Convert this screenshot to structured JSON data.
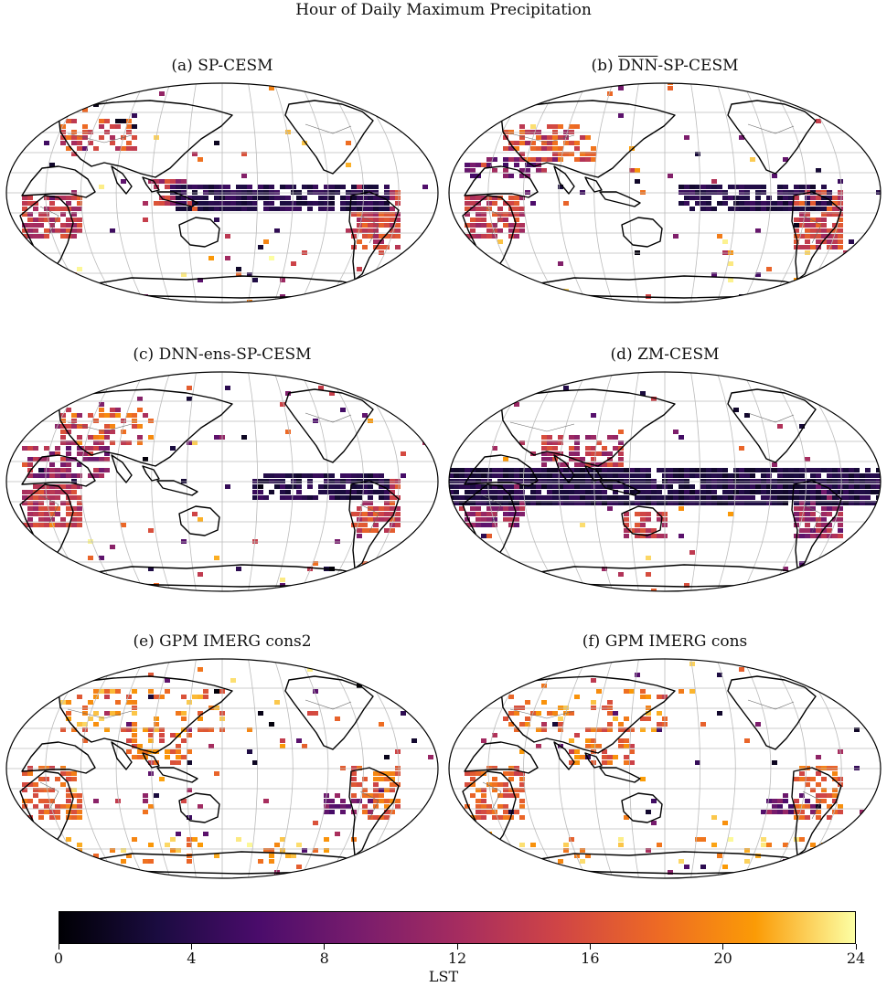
{
  "figure": {
    "title": "Hour of Daily Maximum Precipitation"
  },
  "panels": [
    {
      "id": "a",
      "prefix": "(a) ",
      "overlined": "",
      "title": "SP-CESM",
      "profile": "sp"
    },
    {
      "id": "b",
      "prefix": "(b) ",
      "overlined": "DNN",
      "title": "-SP-CESM",
      "profile": "dnn"
    },
    {
      "id": "c",
      "prefix": "(c) ",
      "overlined": "",
      "title": "DNN-ens-SP-CESM",
      "profile": "ens"
    },
    {
      "id": "d",
      "prefix": "(d) ",
      "overlined": "",
      "title": "ZM-CESM",
      "profile": "zm"
    },
    {
      "id": "e",
      "prefix": "(e) ",
      "overlined": "",
      "title": "GPM IMERG cons2",
      "profile": "gpm"
    },
    {
      "id": "f",
      "prefix": "(f) ",
      "overlined": "",
      "title": "GPM IMERG cons",
      "profile": "gpm"
    }
  ],
  "colorbar": {
    "label": "LST",
    "ticks": [
      "0",
      "4",
      "8",
      "12",
      "16",
      "20",
      "24"
    ],
    "min": 0,
    "max": 24,
    "colormap": "inferno",
    "colors": [
      "#000004",
      "#1b0c41",
      "#4a0c6b",
      "#781c6d",
      "#a52c60",
      "#cf4446",
      "#ed6925",
      "#fb9b06",
      "#fcffa4"
    ]
  }
}
